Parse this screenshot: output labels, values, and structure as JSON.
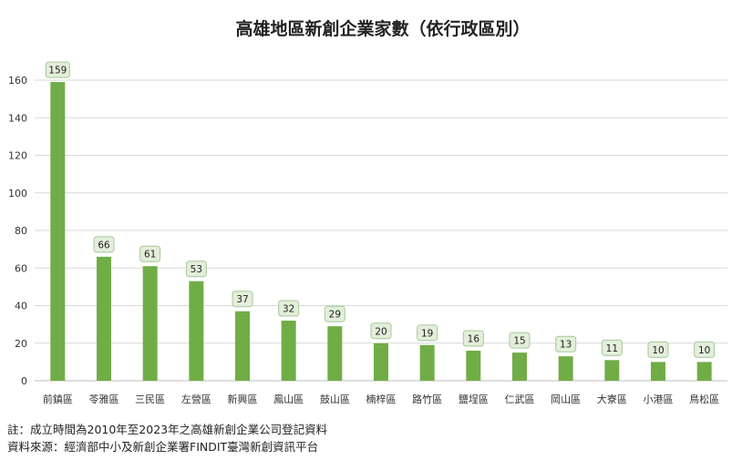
{
  "chart_data": {
    "type": "bar",
    "title": "高雄地區新創企業家數（依行政區別）",
    "xlabel": "",
    "ylabel": "",
    "categories": [
      "前鎮區",
      "苓雅區",
      "三民區",
      "左營區",
      "新興區",
      "鳳山區",
      "鼓山區",
      "楠梓區",
      "路竹區",
      "鹽埕區",
      "仁武區",
      "岡山區",
      "大寮區",
      "小港區",
      "鳥松區"
    ],
    "values": [
      159,
      66,
      61,
      53,
      37,
      32,
      29,
      20,
      19,
      16,
      15,
      13,
      11,
      10,
      10
    ],
    "ylim": [
      0,
      160
    ],
    "yticks": [
      0,
      20,
      40,
      60,
      80,
      100,
      120,
      140,
      160
    ],
    "grid": true,
    "legend": "none",
    "bar_color": "#70ad47",
    "label_fill": "#e2efda",
    "label_stroke": "#a9c79a"
  },
  "notes": {
    "line1": "註：成立時間為2010年至2023年之高雄新創企業公司登記資料",
    "line2": "資料來源：經濟部中小及新創企業署FINDIT臺灣新創資訊平台"
  }
}
